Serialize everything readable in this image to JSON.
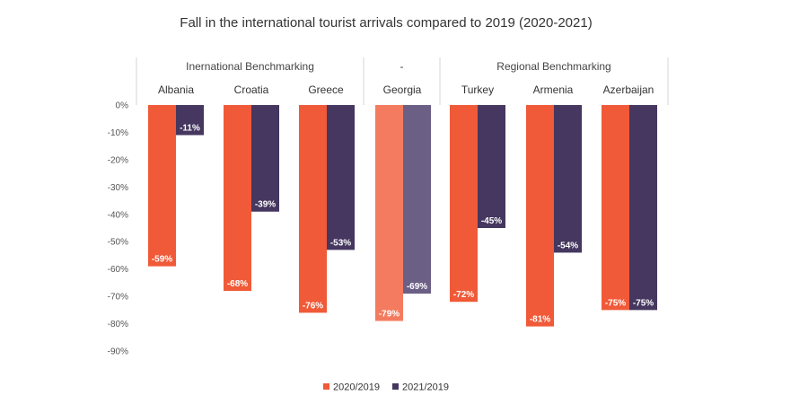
{
  "chart_data": {
    "type": "bar",
    "title": "Fall in the international tourist arrivals compared to 2019 (2020-2021)",
    "ylim": [
      -90,
      0
    ],
    "yticks": [
      0,
      -10,
      -20,
      -30,
      -40,
      -50,
      -60,
      -70,
      -80,
      -90
    ],
    "ytick_labels": [
      "0%",
      "-10%",
      "-20%",
      "-30%",
      "-40%",
      "-50%",
      "-60%",
      "-70%",
      "-80%",
      "-90%"
    ],
    "groups": [
      {
        "label": "Inernational Benchmarking",
        "categories": [
          "Albania",
          "Croatia",
          "Greece"
        ]
      },
      {
        "label": "-",
        "categories": [
          "Georgia"
        ]
      },
      {
        "label": "Regional Benchmarking",
        "categories": [
          "Turkey",
          "Armenia",
          "Azerbaijan"
        ]
      }
    ],
    "categories": [
      "Albania",
      "Croatia",
      "Greece",
      "Georgia",
      "Turkey",
      "Armenia",
      "Azerbaijan"
    ],
    "highlight_category": "Georgia",
    "series": [
      {
        "name": "2020/2019",
        "color": "#f05a38",
        "highlight_color": "#f47b5f",
        "values": [
          -59,
          -68,
          -76,
          -79,
          -72,
          -81,
          -75
        ],
        "labels": [
          "-59%",
          "-68%",
          "-76%",
          "-79%",
          "-72%",
          "-81%",
          "-75%"
        ]
      },
      {
        "name": "2021/2019",
        "color": "#45375f",
        "highlight_color": "#6b5f85",
        "values": [
          -11,
          -39,
          -53,
          -69,
          -45,
          -54,
          -75
        ],
        "labels": [
          "-11%",
          "-39%",
          "-53%",
          "-69%",
          "-45%",
          "-54%",
          "-75%"
        ]
      }
    ],
    "legend_position": "bottom-center",
    "grid": false
  }
}
